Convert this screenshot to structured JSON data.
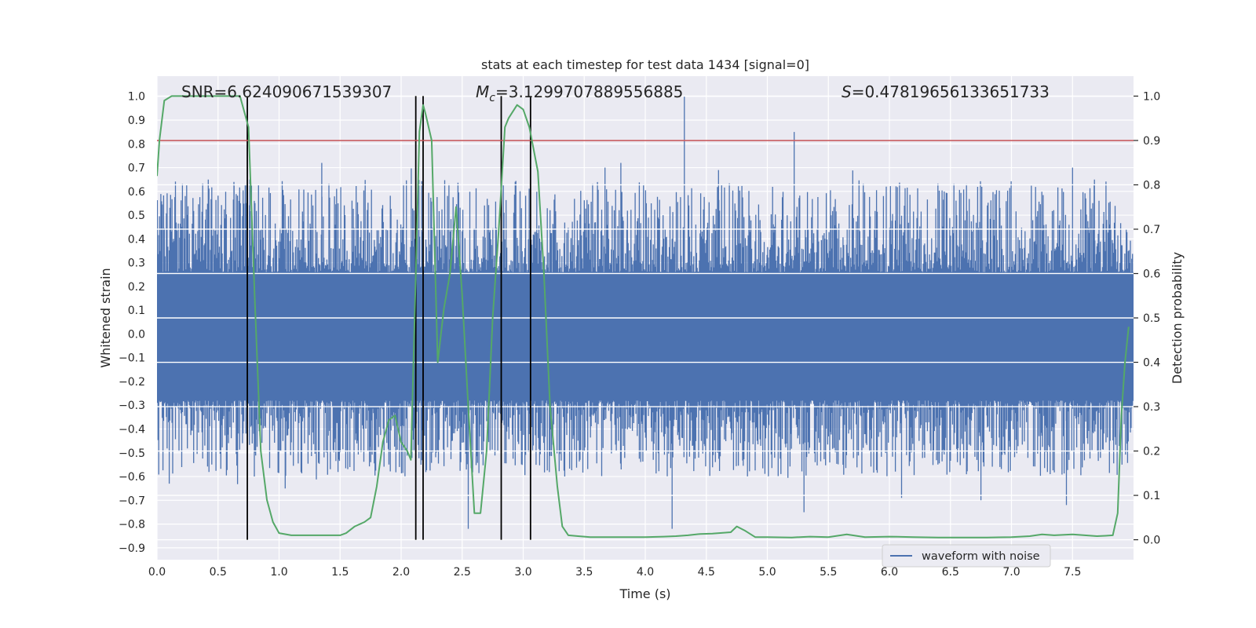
{
  "chart_data": {
    "type": "line",
    "title": "stats at each timestep for test data 1434 [signal=0]",
    "xlabel": "Time (s)",
    "ylabel_left": "Whitened strain",
    "ylabel_right": "Detection probability",
    "xlim": [
      0.0,
      8.0
    ],
    "ylim_left": [
      -0.95,
      1.085
    ],
    "ylim_right": [
      -0.045,
      1.045
    ],
    "x_ticks": [
      "0.0",
      "0.5",
      "1.0",
      "1.5",
      "2.0",
      "2.5",
      "3.0",
      "3.5",
      "4.0",
      "4.5",
      "5.0",
      "5.5",
      "6.0",
      "6.5",
      "7.0",
      "7.5"
    ],
    "y_ticks_left": [
      "1.0",
      "0.9",
      "0.8",
      "0.7",
      "0.6",
      "0.5",
      "0.4",
      "0.3",
      "0.2",
      "0.1",
      "0.0",
      "−0.1",
      "−0.2",
      "−0.3",
      "−0.4",
      "−0.5",
      "−0.6",
      "−0.7",
      "−0.8",
      "−0.9"
    ],
    "y_ticks_right": [
      "1.0",
      "0.9",
      "0.8",
      "0.7",
      "0.6",
      "0.5",
      "0.4",
      "0.3",
      "0.2",
      "0.1",
      "0.0"
    ],
    "grid": true,
    "legend": {
      "position": "lower-right",
      "entries": [
        "waveform with noise"
      ]
    },
    "annotations": {
      "snr": "SNR=6.624090671539307",
      "mc_symbol": "M",
      "mc_sub": "c",
      "mc_value": "=3.1299707889556885",
      "s_symbol": "S",
      "s_value": "=0.47819656133651733"
    },
    "colors": {
      "waveform": "#4c72b0",
      "probability": "#55a868",
      "threshold": "#c44e52",
      "markers": "#000000",
      "plot_bg": "#eaeaf2"
    },
    "waveform": {
      "name": "waveform with noise",
      "core_band": [
        -0.28,
        0.26
      ],
      "typical_peak_range": [
        0.4,
        0.65
      ],
      "typical_trough_range": [
        -0.42,
        -0.6
      ],
      "spikes": [
        {
          "x": 0.42,
          "y": 0.65
        },
        {
          "x": 0.63,
          "y": 0.64
        },
        {
          "x": 0.76,
          "y": 0.65
        },
        {
          "x": 1.35,
          "y": 0.72
        },
        {
          "x": 0.1,
          "y": -0.63
        },
        {
          "x": 1.05,
          "y": -0.65
        },
        {
          "x": 2.12,
          "y": -0.71
        },
        {
          "x": 2.55,
          "y": -0.82
        },
        {
          "x": 3.8,
          "y": 0.72
        },
        {
          "x": 4.22,
          "y": -0.82
        },
        {
          "x": 4.32,
          "y": 1.0
        },
        {
          "x": 5.22,
          "y": 0.85
        },
        {
          "x": 5.3,
          "y": -0.75
        },
        {
          "x": 6.1,
          "y": -0.69
        },
        {
          "x": 6.75,
          "y": -0.7
        },
        {
          "x": 7.5,
          "y": 0.7
        },
        {
          "x": 7.45,
          "y": -0.72
        },
        {
          "x": 7.68,
          "y": 0.65
        },
        {
          "x": 3.67,
          "y": 0.7
        },
        {
          "x": 4.6,
          "y": 0.69
        }
      ]
    },
    "probability": {
      "x": [
        0.0,
        0.02,
        0.06,
        0.12,
        0.2,
        0.3,
        0.4,
        0.5,
        0.6,
        0.68,
        0.75,
        0.8,
        0.85,
        0.9,
        0.95,
        1.0,
        1.1,
        1.2,
        1.3,
        1.4,
        1.5,
        1.55,
        1.62,
        1.7,
        1.75,
        1.8,
        1.85,
        1.9,
        1.95,
        2.0,
        2.05,
        2.08,
        2.12,
        2.15,
        2.18,
        2.2,
        2.25,
        2.3,
        2.35,
        2.4,
        2.45,
        2.5,
        2.55,
        2.6,
        2.65,
        2.7,
        2.75,
        2.8,
        2.85,
        2.88,
        2.95,
        3.0,
        3.05,
        3.12,
        3.17,
        3.22,
        3.28,
        3.32,
        3.37,
        3.45,
        3.55,
        3.7,
        3.85,
        4.0,
        4.15,
        4.25,
        4.35,
        4.45,
        4.55,
        4.7,
        4.75,
        4.82,
        4.9,
        5.0,
        5.2,
        5.35,
        5.5,
        5.65,
        5.8,
        6.0,
        6.2,
        6.4,
        6.6,
        6.8,
        7.0,
        7.15,
        7.25,
        7.35,
        7.5,
        7.6,
        7.7,
        7.77,
        7.83,
        7.87,
        7.9,
        7.93,
        7.96
      ],
      "y": [
        0.82,
        0.9,
        0.99,
        1.0,
        1.0,
        1.0,
        1.0,
        1.0,
        1.0,
        1.0,
        0.93,
        0.55,
        0.2,
        0.09,
        0.04,
        0.015,
        0.01,
        0.01,
        0.01,
        0.01,
        0.01,
        0.015,
        0.03,
        0.04,
        0.05,
        0.12,
        0.22,
        0.27,
        0.28,
        0.22,
        0.2,
        0.18,
        0.6,
        0.92,
        0.98,
        0.96,
        0.9,
        0.4,
        0.52,
        0.6,
        0.75,
        0.55,
        0.3,
        0.06,
        0.06,
        0.2,
        0.5,
        0.7,
        0.93,
        0.95,
        0.98,
        0.97,
        0.93,
        0.83,
        0.6,
        0.3,
        0.12,
        0.03,
        0.01,
        0.008,
        0.006,
        0.006,
        0.006,
        0.006,
        0.007,
        0.008,
        0.01,
        0.013,
        0.014,
        0.017,
        0.03,
        0.02,
        0.006,
        0.006,
        0.005,
        0.007,
        0.006,
        0.012,
        0.006,
        0.007,
        0.006,
        0.005,
        0.005,
        0.005,
        0.006,
        0.008,
        0.012,
        0.01,
        0.012,
        0.01,
        0.008,
        0.009,
        0.01,
        0.06,
        0.28,
        0.4,
        0.48
      ]
    },
    "threshold": {
      "y_right": 0.9
    },
    "markers": {
      "x": [
        0.74,
        2.12,
        2.18,
        2.82,
        3.06
      ],
      "y_range_right": [
        0.0,
        1.0
      ]
    }
  }
}
